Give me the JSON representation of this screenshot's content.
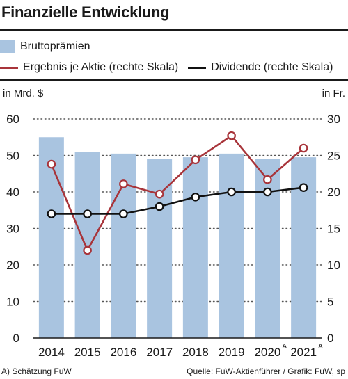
{
  "title": "Finanzielle Entwicklung",
  "legend": {
    "gross": "Bruttoprämien",
    "eps": "Ergebnis je Aktie (rechte Skala)",
    "div": "Dividende (rechte Skala)"
  },
  "axis": {
    "left_unit": "in Mrd. $",
    "right_unit": "in Fr.",
    "left_ticks": [
      "60",
      "50",
      "40",
      "30",
      "20",
      "10",
      "0"
    ],
    "right_ticks": [
      "30",
      "25",
      "20",
      "15",
      "10",
      "5",
      "0"
    ]
  },
  "footer": {
    "note": "A) Schätzung FuW",
    "source": "Quelle: FuW-Aktienführer / Grafik: FuW, sp"
  },
  "colors": {
    "bar": "#a9c4e0",
    "eps": "#a8343a",
    "div": "#111111",
    "grid": "#555555"
  },
  "chart_data": {
    "type": "bar",
    "categories": [
      "2014",
      "2015",
      "2016",
      "2017",
      "2018",
      "2019",
      "2020",
      "2021"
    ],
    "category_superscripts": [
      "",
      "",
      "",
      "",
      "",
      "",
      "A",
      "A"
    ],
    "series": [
      {
        "name": "Bruttoprämien",
        "axis": "left",
        "kind": "bar",
        "values": [
          55.0,
          51.0,
          50.5,
          49.0,
          49.5,
          50.5,
          49.0,
          49.5
        ]
      },
      {
        "name": "Ergebnis je Aktie (rechte Skala)",
        "axis": "right",
        "kind": "line",
        "values": [
          23.8,
          12.0,
          21.1,
          19.7,
          24.4,
          27.7,
          21.7,
          26.0
        ]
      },
      {
        "name": "Dividende (rechte Skala)",
        "axis": "right",
        "kind": "line",
        "values": [
          17.0,
          17.0,
          17.0,
          18.0,
          19.3,
          20.0,
          20.0,
          20.6
        ]
      }
    ],
    "ylim_left": [
      0,
      60
    ],
    "ylim_right": [
      0,
      30
    ],
    "left_axis_label": "in Mrd. $",
    "right_axis_label": "in Fr.",
    "grid": "dotted horizontal",
    "legend_position": "top"
  }
}
